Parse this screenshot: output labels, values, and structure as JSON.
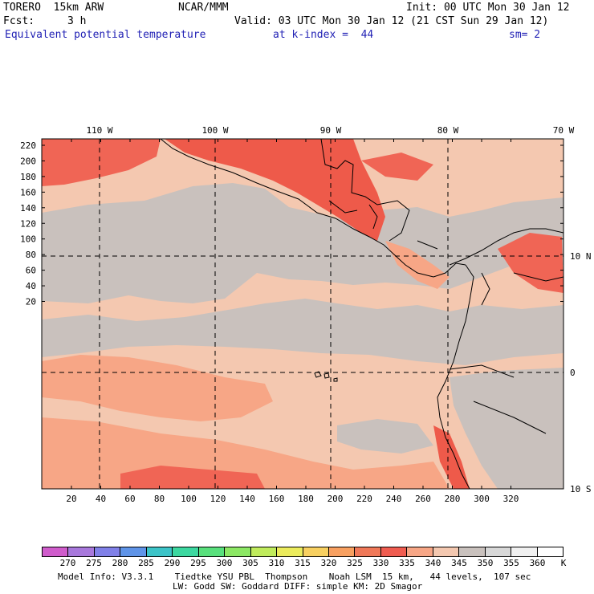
{
  "header": {
    "model_name": "TORERO  15km ARW",
    "center": "NCAR/MMM",
    "init": "Init: 00 UTC Mon 30 Jan 12",
    "fcst_label": "Fcst:",
    "fcst_value": "3 h",
    "valid": "Valid: 03 UTC Mon 30 Jan 12 (21 CST Sun 29 Jan 12)",
    "field_name": "Equivalent potential temperature",
    "level": "at k-index =  44",
    "smoothing": "sm= 2"
  },
  "map": {
    "top_lon_labels": [
      "110 W",
      "100 W",
      "90 W",
      "80 W",
      "70 W"
    ],
    "right_lat_labels": [
      "10 N",
      "0",
      "10 S"
    ],
    "left_grid_labels": [
      "220",
      "200",
      "180",
      "160",
      "140",
      "120",
      "100",
      "80",
      "60",
      "40",
      "20"
    ],
    "bottom_grid_labels": [
      "20",
      "40",
      "60",
      "80",
      "100",
      "120",
      "140",
      "160",
      "180",
      "200",
      "220",
      "240",
      "260",
      "280",
      "300",
      "320"
    ],
    "colors": {
      "theta_340_345": "#f4c8b0",
      "theta_345_350": "#c9c1bd",
      "theta_335_340": "#f7a686",
      "theta_330_335": "#f06555",
      "theta_325_330": "#ee5a4a",
      "coast": "#000000"
    }
  },
  "colorbar": {
    "labels": [
      "270",
      "275",
      "280",
      "285",
      "290",
      "295",
      "300",
      "305",
      "310",
      "315",
      "320",
      "325",
      "330",
      "335",
      "340",
      "345",
      "350",
      "355",
      "360"
    ],
    "unit": "K",
    "colors": [
      "#d05ccc",
      "#a878dc",
      "#8080e8",
      "#5f94e8",
      "#3cc4c8",
      "#3cd8a0",
      "#58e07c",
      "#8ce864",
      "#c0ec5c",
      "#ecec5c",
      "#f8d060",
      "#f8a060",
      "#f07858",
      "#f05c50",
      "#f7a686",
      "#f4c8b0",
      "#c9c1bd",
      "#d8d8d8",
      "#f0f0f0",
      "#ffffff"
    ]
  },
  "footer": {
    "line1": "Model Info: V3.3.1    Tiedtke YSU PBL  Thompson    Noah LSM  15 km,   44 levels,  107 sec",
    "line2": "LW: Godd SW: Goddard DIFF: simple KM: 2D Smagor"
  }
}
